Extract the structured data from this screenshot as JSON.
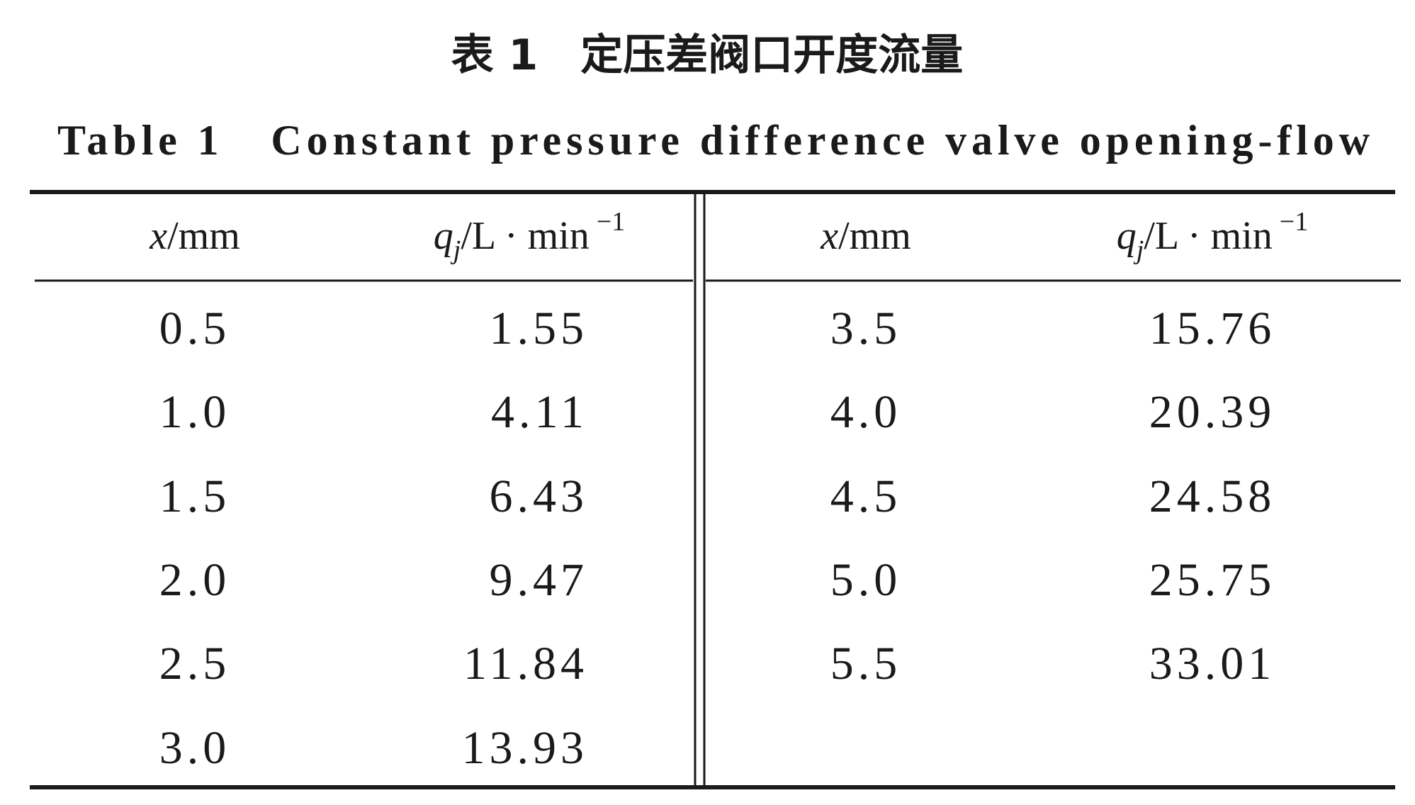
{
  "title_cn": "表 1　定压差阀口开度流量",
  "title_en": "Table 1　Constant pressure difference valve opening-flow",
  "table": {
    "headers": [
      {
        "symbol": "x",
        "unit": "/mm"
      },
      {
        "symbol": "q",
        "sub": "j",
        "unit": "/L · min",
        "sup": "−1"
      },
      {
        "symbol": "x",
        "unit": "/mm"
      },
      {
        "symbol": "q",
        "sub": "j",
        "unit": "/L · min",
        "sup": "−1"
      }
    ],
    "left_rows": [
      [
        "0.5",
        "1.55"
      ],
      [
        "1.0",
        "4.11"
      ],
      [
        "1.5",
        "6.43"
      ],
      [
        "2.0",
        "9.47"
      ],
      [
        "2.5",
        "11.84"
      ],
      [
        "3.0",
        "13.93"
      ]
    ],
    "right_rows": [
      [
        "3.5",
        "15.76"
      ],
      [
        "4.0",
        "20.39"
      ],
      [
        "4.5",
        "24.58"
      ],
      [
        "5.0",
        "25.75"
      ],
      [
        "5.5",
        "33.01"
      ]
    ]
  }
}
